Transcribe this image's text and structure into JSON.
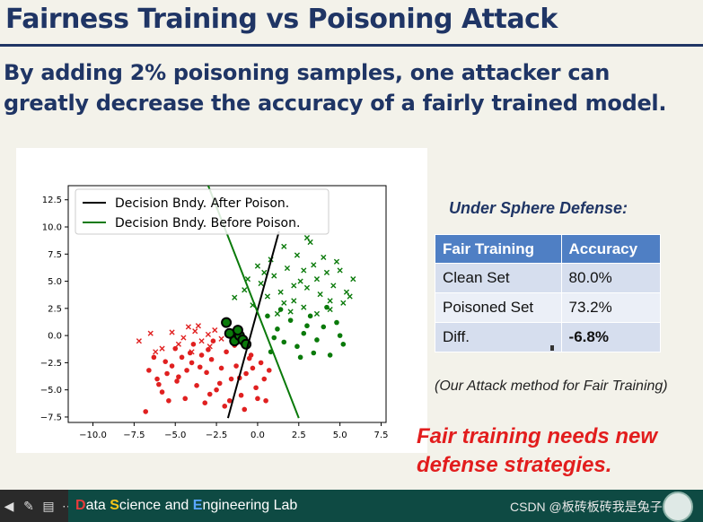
{
  "slide": {
    "title": "Fairness Training vs Poisoning Attack",
    "subtitle": "By adding 2% poisoning samples, one attacker can greatly decrease the accuracy of a fairly trained model.",
    "defense_title": "Under Sphere Defense:",
    "table": {
      "headers": [
        "Fair Training",
        "Accuracy"
      ],
      "rows": [
        [
          "Clean Set",
          "80.0%"
        ],
        [
          "Poisoned Set",
          "73.2%"
        ],
        [
          "Diff.",
          "-6.8%"
        ]
      ]
    },
    "attack_note": "(Our Attack method for Fair Training)",
    "conclusion_line1": "Fair training needs new",
    "conclusion_line2": "defense strategies.",
    "footer": {
      "lab_d": "D",
      "lab_part1": "ata ",
      "lab_s": "S",
      "lab_part2": "cience and ",
      "lab_e": "E",
      "lab_part3": "ngineering Lab",
      "watermark": "CSDN @板砖板砖我是兔子"
    }
  },
  "chart_data": {
    "type": "scatter",
    "title": "",
    "xlabel": "",
    "ylabel": "",
    "xlim": [
      -11.5,
      7.8
    ],
    "ylim": [
      -8.0,
      13.8
    ],
    "x_ticks": [
      "−10.0",
      "−7.5",
      "−5.0",
      "−2.5",
      "0.0",
      "2.5",
      "5.0",
      "7.5"
    ],
    "x_tick_values": [
      -10,
      -7.5,
      -5,
      -2.5,
      0,
      2.5,
      5,
      7.5
    ],
    "y_ticks": [
      "12.5",
      "10.0",
      "7.5",
      "5.0",
      "2.5",
      "0.0",
      "−2.5",
      "−5.0",
      "−7.5"
    ],
    "y_tick_values": [
      12.5,
      10,
      7.5,
      5,
      2.5,
      0,
      -2.5,
      -5,
      -7.5
    ],
    "grid": false,
    "legend_position": "top-left",
    "legend": [
      "Decision Bndy. After Poison.",
      "Decision Bndy. Before Poison."
    ],
    "lines": [
      {
        "name": "Decision Bndy. After Poison.",
        "color": "#000000",
        "x": [
          -1.8,
          1.3
        ],
        "y": [
          -7.6,
          9.6
        ]
      },
      {
        "name": "Decision Bndy. Before Poison.",
        "color": "#0a7a0a",
        "x": [
          -3.0,
          2.5
        ],
        "y": [
          13.8,
          -7.6
        ]
      }
    ],
    "series": [
      {
        "name": "",
        "marker": "x",
        "color": "#e02020",
        "points": [
          [
            -7.2,
            -0.5
          ],
          [
            -6.5,
            0.2
          ],
          [
            -4.2,
            0.8
          ],
          [
            -3.8,
            0.4
          ],
          [
            -4.5,
            -0.2
          ],
          [
            -3.0,
            0.1
          ],
          [
            -2.6,
            0.5
          ],
          [
            -3.4,
            -0.5
          ],
          [
            -5.8,
            -1.2
          ],
          [
            -4.8,
            -0.8
          ],
          [
            -2.2,
            -0.3
          ],
          [
            -1.5,
            0.0
          ],
          [
            -2.9,
            -1.0
          ],
          [
            -3.6,
            0.9
          ],
          [
            -4.0,
            -1.5
          ],
          [
            -6.2,
            -1.5
          ],
          [
            -5.2,
            0.3
          ]
        ]
      },
      {
        "name": "",
        "marker": "o",
        "color": "#e02020",
        "points": [
          [
            -6.8,
            -7.0
          ],
          [
            -6.0,
            -4.5
          ],
          [
            -5.5,
            -3.5
          ],
          [
            -5.2,
            -2.8
          ],
          [
            -4.9,
            -4.2
          ],
          [
            -4.6,
            -2.0
          ],
          [
            -4.3,
            -3.2
          ],
          [
            -4.0,
            -2.5
          ],
          [
            -3.7,
            -4.6
          ],
          [
            -3.4,
            -1.8
          ],
          [
            -3.1,
            -3.4
          ],
          [
            -2.8,
            -2.2
          ],
          [
            -2.5,
            -5.0
          ],
          [
            -2.2,
            -3.0
          ],
          [
            -1.9,
            -1.5
          ],
          [
            -1.6,
            -4.0
          ],
          [
            -1.3,
            -2.8
          ],
          [
            -1.0,
            -5.5
          ],
          [
            -0.7,
            -3.5
          ],
          [
            -0.4,
            -1.8
          ],
          [
            -0.1,
            -4.8
          ],
          [
            0.2,
            -2.5
          ],
          [
            0.5,
            -6.0
          ],
          [
            -6.3,
            -2.0
          ],
          [
            -5.8,
            -5.2
          ],
          [
            -5.0,
            -1.2
          ],
          [
            -4.4,
            -5.8
          ],
          [
            -3.9,
            -0.8
          ],
          [
            -3.2,
            -6.2
          ],
          [
            -2.7,
            -0.5
          ],
          [
            -2.0,
            -6.5
          ],
          [
            -1.4,
            -0.9
          ],
          [
            -0.8,
            -6.8
          ],
          [
            -0.3,
            -3.0
          ],
          [
            0.4,
            -4.0
          ],
          [
            -6.6,
            -3.2
          ],
          [
            -5.4,
            -6.0
          ],
          [
            -4.8,
            -3.8
          ],
          [
            -3.5,
            -2.9
          ],
          [
            -2.3,
            -4.4
          ],
          [
            -1.1,
            -3.9
          ],
          [
            -0.5,
            -2.1
          ],
          [
            0.0,
            -5.8
          ],
          [
            -6.1,
            -4.0
          ],
          [
            -4.1,
            -1.6
          ],
          [
            -2.9,
            -5.4
          ],
          [
            -1.7,
            -6.0
          ],
          [
            0.7,
            -3.2
          ],
          [
            -5.6,
            -2.4
          ],
          [
            -3.0,
            -1.3
          ]
        ]
      },
      {
        "name": "",
        "marker": "x",
        "color": "#0a7a0a",
        "points": [
          [
            -1.4,
            3.5
          ],
          [
            -0.8,
            4.2
          ],
          [
            -0.3,
            2.8
          ],
          [
            0.2,
            4.8
          ],
          [
            0.6,
            3.6
          ],
          [
            1.0,
            5.5
          ],
          [
            1.4,
            4.0
          ],
          [
            1.8,
            6.2
          ],
          [
            2.2,
            3.2
          ],
          [
            2.6,
            5.0
          ],
          [
            3.0,
            4.4
          ],
          [
            3.4,
            6.5
          ],
          [
            3.8,
            3.8
          ],
          [
            4.2,
            5.8
          ],
          [
            4.6,
            4.6
          ],
          [
            5.0,
            6.0
          ],
          [
            5.4,
            4.0
          ],
          [
            5.8,
            5.2
          ],
          [
            0.8,
            7.0
          ],
          [
            1.6,
            8.2
          ],
          [
            2.4,
            7.4
          ],
          [
            3.2,
            8.6
          ],
          [
            4.0,
            7.2
          ],
          [
            4.8,
            6.8
          ],
          [
            2.0,
            2.2
          ],
          [
            2.8,
            2.6
          ],
          [
            3.6,
            2.0
          ],
          [
            4.4,
            2.4
          ],
          [
            5.2,
            3.0
          ],
          [
            0.4,
            5.8
          ],
          [
            -0.6,
            5.2
          ],
          [
            1.2,
            2.0
          ],
          [
            3.0,
            9.0
          ],
          [
            2.8,
            6.0
          ],
          [
            3.6,
            5.2
          ],
          [
            4.4,
            3.2
          ],
          [
            1.6,
            3.0
          ],
          [
            0.0,
            6.4
          ],
          [
            2.2,
            4.6
          ],
          [
            5.6,
            3.6
          ]
        ]
      },
      {
        "name": "",
        "marker": "o",
        "color": "#0a7a0a",
        "points": [
          [
            0.8,
            -1.5
          ],
          [
            1.2,
            0.6
          ],
          [
            1.6,
            -0.6
          ],
          [
            2.0,
            1.4
          ],
          [
            2.4,
            -1.0
          ],
          [
            2.8,
            0.2
          ],
          [
            3.2,
            1.8
          ],
          [
            3.6,
            -0.4
          ],
          [
            4.0,
            0.8
          ],
          [
            4.4,
            -1.8
          ],
          [
            4.8,
            1.2
          ],
          [
            5.2,
            -0.8
          ],
          [
            0.6,
            1.8
          ],
          [
            1.4,
            2.4
          ],
          [
            2.6,
            -2.0
          ],
          [
            3.4,
            -1.6
          ],
          [
            4.2,
            2.6
          ],
          [
            5.0,
            0.0
          ],
          [
            1.0,
            -0.2
          ],
          [
            3.0,
            0.9
          ]
        ]
      },
      {
        "name": "",
        "marker": "o",
        "color": "#0a7a0a",
        "edge": "#000000",
        "points": [
          [
            -1.9,
            1.2
          ],
          [
            -1.7,
            0.2
          ],
          [
            -1.4,
            -0.5
          ],
          [
            -1.1,
            0.0
          ],
          [
            -0.9,
            -0.4
          ],
          [
            -0.7,
            -0.8
          ],
          [
            -1.2,
            0.5
          ]
        ]
      }
    ]
  }
}
